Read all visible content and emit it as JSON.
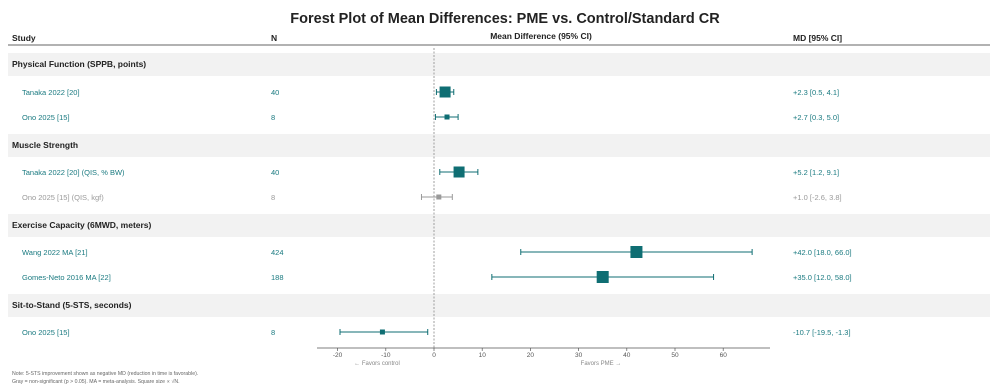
{
  "chart_data": {
    "type": "forest",
    "title": "Forest Plot of Mean Differences: PME vs. Control/Standard CR",
    "columns": {
      "study": "Study",
      "n": "N",
      "ci": "Mean Difference (95% CI)",
      "md": "MD [95% CI]"
    },
    "xlim": [
      -25,
      70
    ],
    "xticks": [
      -20,
      -10,
      0,
      10,
      20,
      30,
      40,
      50,
      60
    ],
    "reference_line": 0,
    "favors_left": "← Favors control",
    "favors_right": "Favors PME →",
    "sections": [
      {
        "title": "Physical Function (SPPB, points)",
        "rows": [
          {
            "study": "Tanaka 2022 [20]",
            "n": "40",
            "md": 2.3,
            "lo": 0.5,
            "hi": 4.1,
            "label": "+2.3 [0.5, 4.1]",
            "significant": true,
            "size": "large"
          },
          {
            "study": "Ono 2025 [15]",
            "n": "8",
            "md": 2.7,
            "lo": 0.3,
            "hi": 5.0,
            "label": "+2.7 [0.3, 5.0]",
            "significant": true,
            "size": "small"
          }
        ]
      },
      {
        "title": "Muscle Strength",
        "rows": [
          {
            "study": "Tanaka 2022 [20] (QIS, % BW)",
            "n": "40",
            "md": 5.2,
            "lo": 1.2,
            "hi": 9.1,
            "label": "+5.2 [1.2, 9.1]",
            "significant": true,
            "size": "large"
          },
          {
            "study": "Ono 2025 [15] (QIS, kgf)",
            "n": "8",
            "md": 1.0,
            "lo": -2.6,
            "hi": 3.8,
            "label": "+1.0 [-2.6, 3.8]",
            "significant": false,
            "size": "small"
          }
        ]
      },
      {
        "title": "Exercise Capacity (6MWD, meters)",
        "rows": [
          {
            "study": "Wang 2022 MA [21]",
            "n": "424",
            "md": 42.0,
            "lo": 18.0,
            "hi": 66.0,
            "label": "+42.0 [18.0, 66.0]",
            "significant": true,
            "size": "xlarge"
          },
          {
            "study": "Gomes-Neto 2016 MA [22]",
            "n": "188",
            "md": 35.0,
            "lo": 12.0,
            "hi": 58.0,
            "label": "+35.0 [12.0, 58.0]",
            "significant": true,
            "size": "xlarge"
          }
        ]
      },
      {
        "title": "Sit-to-Stand (5-STS, seconds)",
        "rows": [
          {
            "study": "Ono 2025 [15]",
            "n": "8",
            "md": -10.7,
            "lo": -19.5,
            "hi": -1.3,
            "label": "-10.7 [-19.5, -1.3]",
            "significant": true,
            "size": "small"
          }
        ]
      }
    ],
    "notes": [
      "Note: 5-STS improvement shown as negative MD (reduction in time is favorable).",
      "Gray = non-significant (p > 0.05). MA = meta-analysis. Square size ∝ √N."
    ],
    "colors": {
      "significant": "#0f6e73",
      "significant_text": "#1a7a80",
      "non_significant": "#9a9a9a",
      "section_band": "#f2f2f2"
    }
  }
}
